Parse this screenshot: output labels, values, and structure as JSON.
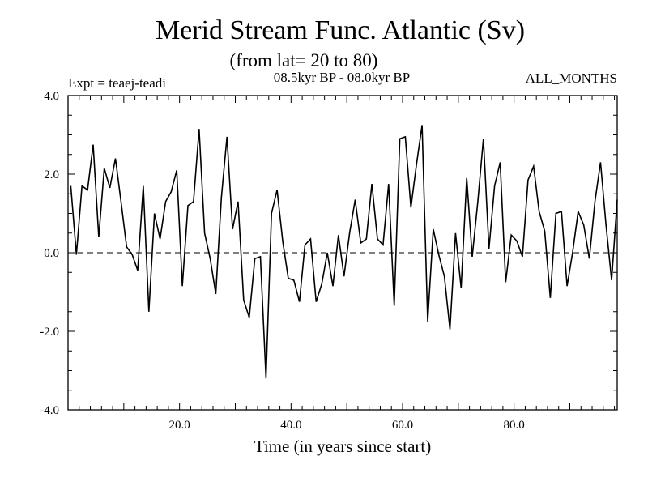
{
  "chart_data": {
    "type": "line",
    "title": "Merid Stream Func. Atlantic (Sv)",
    "subtitle": "(from lat= 20 to 80)",
    "experiment": "Expt = teaej-teadi",
    "period": "08.5kyr BP - 08.0kyr BP",
    "months": "ALL_MONTHS",
    "xlabel": "Time (in years since start)",
    "ylabel": "",
    "xlim": [
      0,
      98.5
    ],
    "ylim": [
      -4.0,
      4.0
    ],
    "x_ticks": [
      {
        "value": 20,
        "label": "20.0"
      },
      {
        "value": 40,
        "label": "40.0"
      },
      {
        "value": 60,
        "label": "60.0"
      },
      {
        "value": 80,
        "label": "80.0"
      }
    ],
    "y_ticks": [
      {
        "value": 4,
        "label": "4.0"
      },
      {
        "value": 2,
        "label": "2.0"
      },
      {
        "value": 0,
        "label": "0.0"
      },
      {
        "value": -2,
        "label": "-2.0"
      },
      {
        "value": -4,
        "label": "-4.0"
      }
    ],
    "reference_line": 0,
    "x": [
      0.5,
      1.5,
      2.5,
      3.5,
      4.5,
      5.5,
      6.5,
      7.5,
      8.5,
      9.5,
      10.5,
      11.5,
      12.5,
      13.5,
      14.5,
      15.5,
      16.5,
      17.5,
      18.5,
      19.5,
      20.5,
      21.5,
      22.5,
      23.5,
      24.5,
      25.5,
      26.5,
      27.5,
      28.5,
      29.5,
      30.5,
      31.5,
      32.5,
      33.5,
      34.5,
      35.5,
      36.5,
      37.5,
      38.5,
      39.5,
      40.5,
      41.5,
      42.5,
      43.5,
      44.5,
      45.5,
      46.5,
      47.5,
      48.5,
      49.5,
      50.5,
      51.5,
      52.5,
      53.5,
      54.5,
      55.5,
      56.5,
      57.5,
      58.5,
      59.5,
      60.5,
      61.5,
      62.5,
      63.5,
      64.5,
      65.5,
      66.5,
      67.5,
      68.5,
      69.5,
      70.5,
      71.5,
      72.5,
      73.5,
      74.5,
      75.5,
      76.5,
      77.5,
      78.5,
      79.5,
      80.5,
      81.5,
      82.5,
      83.5,
      84.5,
      85.5,
      86.5,
      87.5,
      88.5,
      89.5,
      90.5,
      91.5,
      92.5,
      93.5,
      94.5,
      95.5,
      96.5,
      97.5,
      98.5
    ],
    "series": [
      {
        "name": "Merid Stream Func. Atlantic",
        "values": [
          1.7,
          -0.05,
          1.7,
          1.6,
          2.75,
          0.4,
          2.15,
          1.65,
          2.4,
          1.3,
          0.15,
          -0.05,
          -0.45,
          1.7,
          -1.5,
          1.0,
          0.35,
          1.3,
          1.55,
          2.1,
          -0.85,
          1.2,
          1.3,
          3.15,
          0.5,
          -0.15,
          -1.05,
          1.4,
          2.95,
          0.6,
          1.3,
          -1.2,
          -1.65,
          -0.15,
          -0.1,
          -3.2,
          1.0,
          1.6,
          0.3,
          -0.65,
          -0.7,
          -1.25,
          0.2,
          0.35,
          -1.25,
          -0.8,
          0.0,
          -0.85,
          0.45,
          -0.6,
          0.5,
          1.35,
          0.25,
          0.35,
          1.75,
          0.35,
          0.2,
          1.75,
          -1.35,
          2.9,
          2.95,
          1.15,
          2.25,
          3.25,
          -1.75,
          0.6,
          -0.05,
          -0.6,
          -1.95,
          0.5,
          -0.9,
          1.9,
          -0.1,
          1.3,
          2.9,
          0.1,
          1.7,
          2.3,
          -0.75,
          0.45,
          0.3,
          -0.1,
          1.85,
          2.2,
          1.05,
          0.55,
          -1.15,
          1.0,
          1.05,
          -0.85,
          0.0,
          1.05,
          0.7,
          -0.15,
          1.3,
          2.3,
          0.7,
          -0.7,
          1.35
        ]
      }
    ]
  }
}
